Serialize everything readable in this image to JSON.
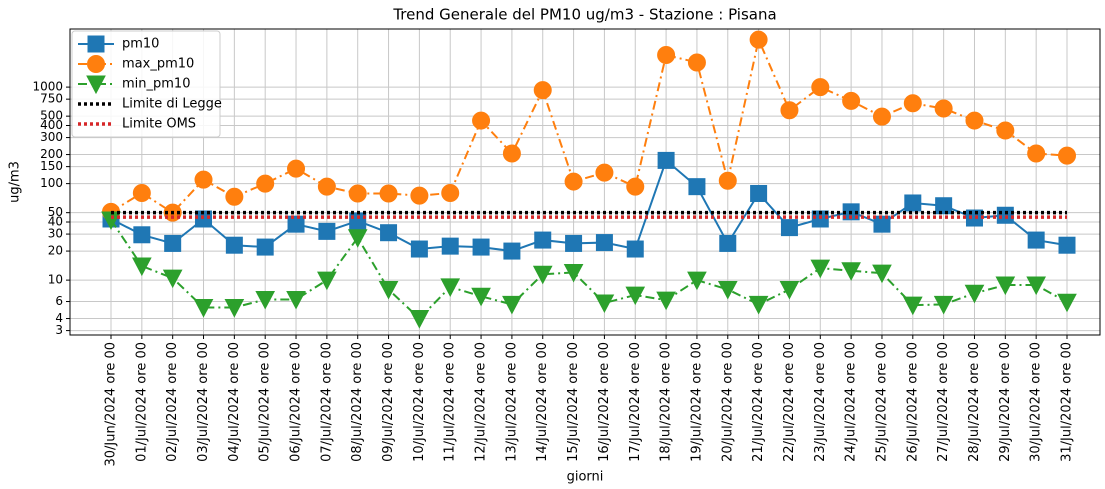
{
  "chart_data": {
    "type": "line",
    "title": "Trend Generale del PM10 ug/m3 - Stazione : Pisana",
    "x_label": "giorni",
    "y_label": "ug/m3",
    "categories": [
      "30/Jun/2024 ore 00",
      "01/Jul/2024 ore 00",
      "02/Jul/2024 ore 00",
      "03/Jul/2024 ore 00",
      "04/Jul/2024 ore 00",
      "05/Jul/2024 ore 00",
      "06/Jul/2024 ore 00",
      "07/Jul/2024 ore 00",
      "08/Jul/2024 ore 00",
      "09/Jul/2024 ore 00",
      "10/Jul/2024 ore 00",
      "11/Jul/2024 ore 00",
      "12/Jul/2024 ore 00",
      "13/Jul/2024 ore 00",
      "14/Jul/2024 ore 00",
      "15/Jul/2024 ore 00",
      "16/Jul/2024 ore 00",
      "17/Jul/2024 ore 00",
      "18/Jul/2024 ore 00",
      "19/Jul/2024 ore 00",
      "20/Jul/2024 ore 00",
      "21/Jul/2024 ore 00",
      "22/Jul/2024 ore 00",
      "23/Jul/2024 ore 00",
      "24/Jul/2024 ore 00",
      "25/Jul/2024 ore 00",
      "26/Jul/2024 ore 00",
      "27/Jul/2024 ore 00",
      "28/Jul/2024 ore 00",
      "29/Jul/2024 ore 00",
      "30/Jul/2024 ore 00",
      "31/Jul/2024 ore 00"
    ],
    "series": [
      {
        "name": "pm10",
        "color": "#1f77b4",
        "linestyle": "solid",
        "marker": "square",
        "values": [
          43,
          29.5,
          24,
          43,
          23,
          22,
          38,
          32,
          41,
          31,
          21,
          22.5,
          22,
          20,
          26,
          24,
          24.5,
          21,
          174,
          93,
          24,
          79,
          35,
          43,
          51,
          38,
          63,
          59,
          44,
          47,
          26,
          23
        ]
      },
      {
        "name": "max_pm10",
        "color": "#ff7f0e",
        "linestyle": "dashdot",
        "marker": "circle",
        "values": [
          51,
          80,
          50,
          110,
          73,
          100,
          143,
          93,
          79,
          79,
          75,
          80,
          450,
          205,
          930,
          105,
          130,
          93,
          2150,
          1800,
          107,
          3100,
          575,
          1000,
          720,
          495,
          680,
          600,
          450,
          355,
          205,
          195
        ]
      },
      {
        "name": "min_pm10",
        "color": "#2ca02c",
        "linestyle": "dashdot",
        "marker": "triangle-down",
        "values": [
          42,
          14,
          10.5,
          5.2,
          5.2,
          6.3,
          6.3,
          10,
          27.5,
          8,
          4,
          8.5,
          6.8,
          5.6,
          11.5,
          12,
          5.8,
          7,
          6.2,
          10,
          8,
          5.6,
          8,
          13.3,
          12.5,
          11.8,
          5.5,
          5.6,
          7.3,
          8.9,
          8.9,
          5.9
        ]
      },
      {
        "name": "Limite di Legge",
        "color": "#000000",
        "linestyle": "dotted",
        "values": [
          50,
          50,
          50,
          50,
          50,
          50,
          50,
          50,
          50,
          50,
          50,
          50,
          50,
          50,
          50,
          50,
          50,
          50,
          50,
          50,
          50,
          50,
          50,
          50,
          50,
          50,
          50,
          50,
          50,
          50,
          50,
          50
        ]
      },
      {
        "name": "Limite OMS",
        "color": "#d62728",
        "linestyle": "dotted",
        "values": [
          45,
          45,
          45,
          45,
          45,
          45,
          45,
          45,
          45,
          45,
          45,
          45,
          45,
          45,
          45,
          45,
          45,
          45,
          45,
          45,
          45,
          45,
          45,
          45,
          45,
          45,
          45,
          45,
          45,
          45,
          45,
          45
        ]
      }
    ],
    "ylog": true,
    "ylim": [
      2.7,
      4000
    ],
    "yticks": [
      3,
      4,
      6,
      10,
      20,
      30,
      40,
      50,
      100,
      150,
      200,
      300,
      400,
      500,
      750,
      1000
    ],
    "grid": true,
    "legend": "upper left"
  }
}
